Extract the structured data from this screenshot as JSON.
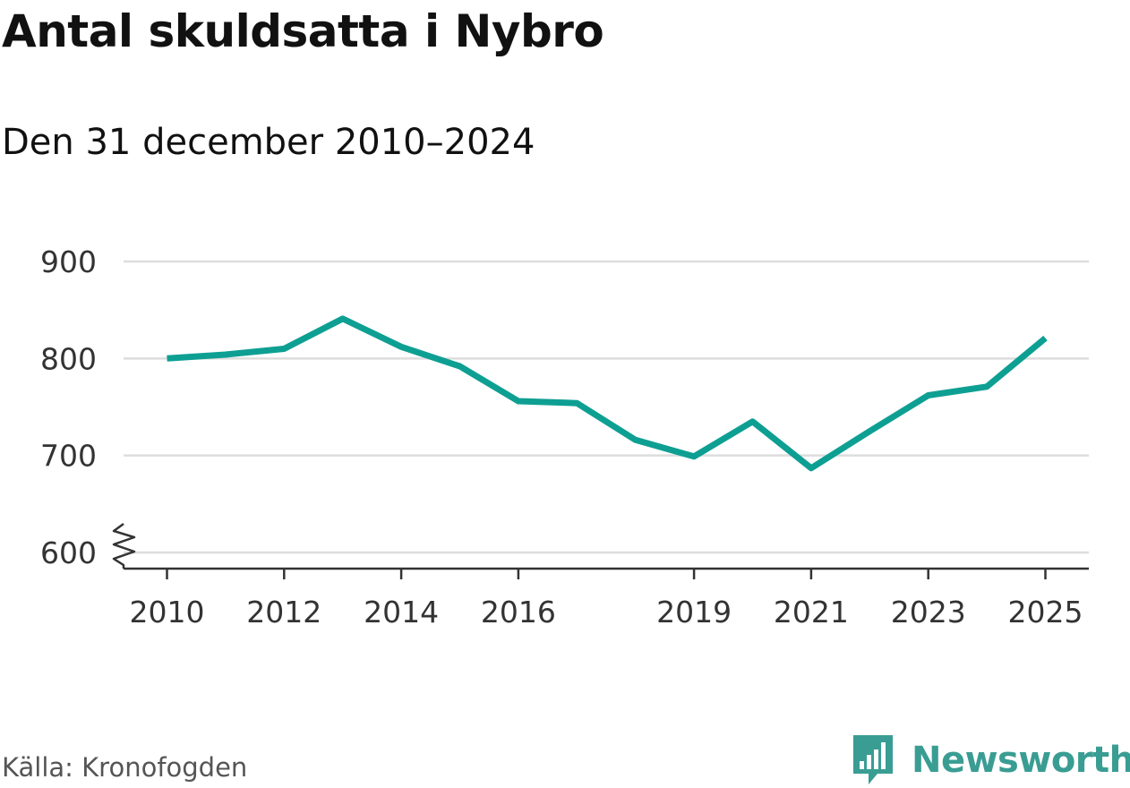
{
  "title": "Antal skuldsatta i Nybro",
  "subtitle": "Den 31 december 2010–2024",
  "source": "Källa: Kronofogden",
  "brand": {
    "name": "Newsworthy",
    "icon": "newsworthy-logo-icon",
    "color": "#3a9d93"
  },
  "colors": {
    "line": "#0e9f93",
    "grid": "#dddddd",
    "axis": "#333333"
  },
  "chart_data": {
    "type": "line",
    "title": "Antal skuldsatta i Nybro",
    "subtitle": "Den 31 december 2010–2024",
    "x": [
      "2010",
      "2011",
      "2012",
      "2013",
      "2014",
      "2015",
      "2016",
      "2017",
      "2018",
      "2019",
      "2020",
      "2021",
      "2022",
      "2023",
      "2024",
      "2025"
    ],
    "x_ticks": [
      "2010",
      "2012",
      "2014",
      "2016",
      "2019",
      "2021",
      "2023",
      "2025"
    ],
    "series": [
      {
        "x": [
          "2010",
          "2011",
          "2012",
          "2013",
          "2014",
          "2015",
          "2016",
          "2017",
          "2018",
          "2019",
          "2020",
          "2021",
          "2022",
          "2023",
          "2024",
          "2025"
        ],
        "values": [
          800,
          804,
          810,
          841,
          812,
          792,
          756,
          754,
          716,
          699,
          735,
          687,
          725,
          762,
          771,
          821
        ]
      }
    ],
    "y_ticks": [
      600,
      700,
      800,
      900
    ],
    "ylim": [
      600,
      900
    ],
    "y_axis_break": true,
    "grid": true,
    "legend": "none"
  }
}
